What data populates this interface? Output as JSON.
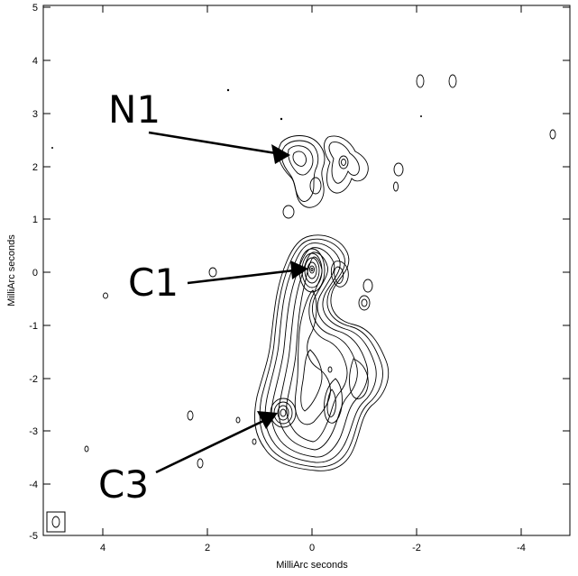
{
  "axes": {
    "x_label": "MilliArc seconds",
    "y_label": "MilliArc seconds",
    "x_ticks": [
      "4",
      "2",
      "0",
      "-2",
      "-4"
    ],
    "y_ticks": [
      "5",
      "4",
      "3",
      "2",
      "1",
      "0",
      "-1",
      "-2",
      "-3",
      "-4",
      "-5"
    ]
  },
  "components": [
    {
      "label": "N1",
      "position_mas": [
        0.6,
        2.2
      ]
    },
    {
      "label": "C1",
      "position_mas": [
        0.0,
        0.0
      ]
    },
    {
      "label": "C3",
      "position_mas": [
        0.9,
        -2.8
      ]
    }
  ],
  "beam_label": "0"
}
